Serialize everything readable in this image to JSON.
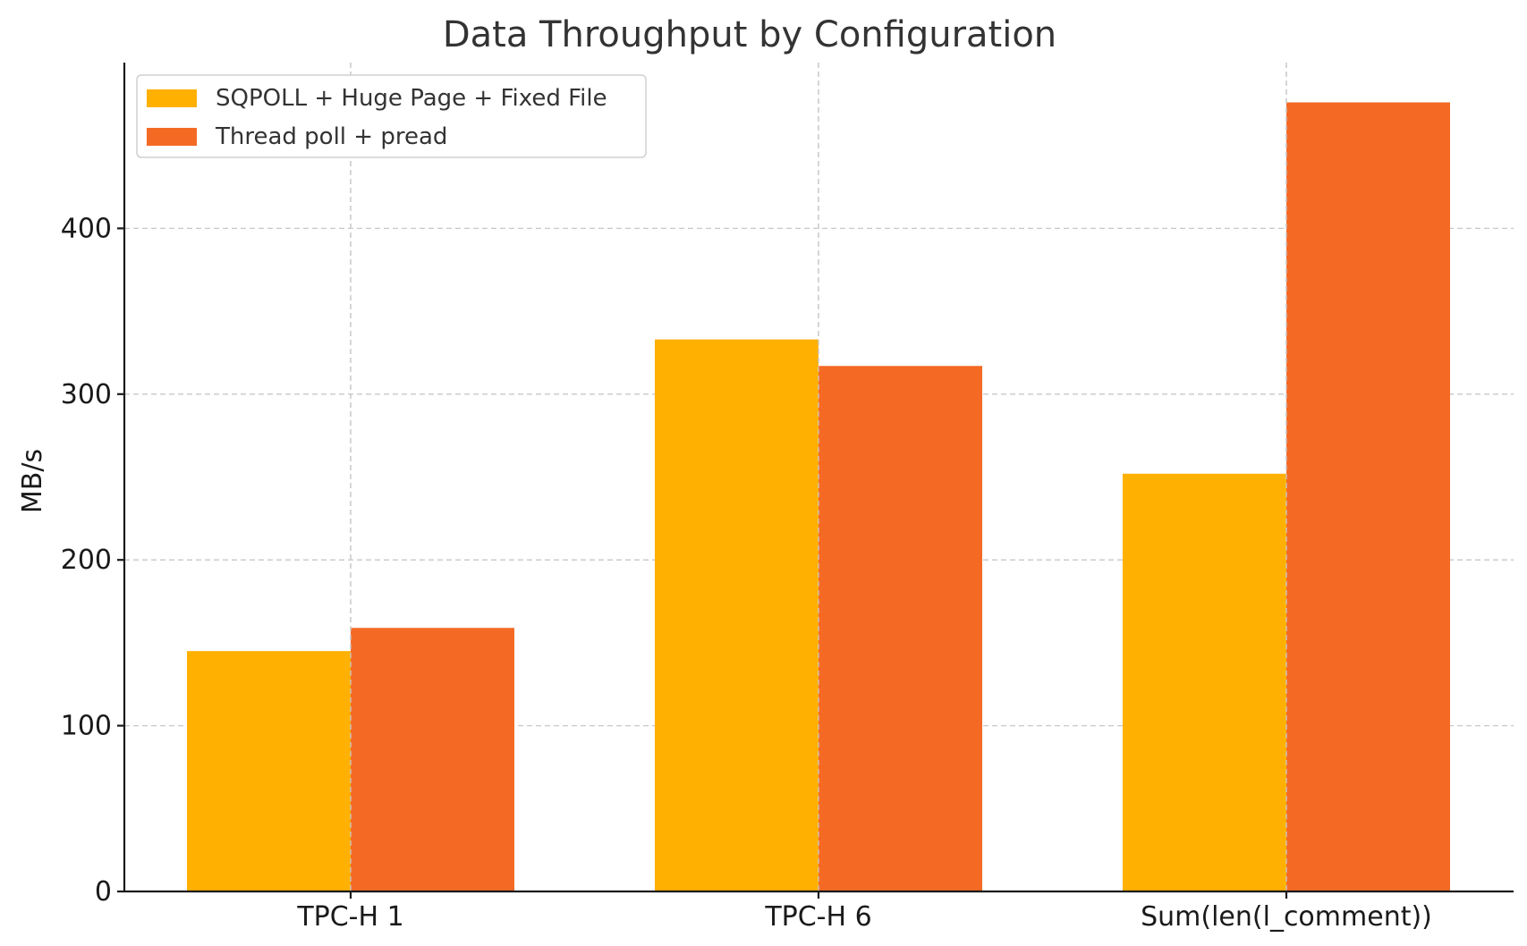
{
  "chart_data": {
    "type": "bar",
    "title": "Data Throughput by Configuration",
    "xlabel": "",
    "ylabel": "MB/s",
    "categories": [
      "TPC-H 1",
      "TPC-H 6",
      "Sum(len(l_comment))"
    ],
    "series": [
      {
        "name": "SQPOLL + Huge Page + Fixed File",
        "color": "#FFB000",
        "values": [
          145,
          333,
          252
        ]
      },
      {
        "name": "Thread poll + pread",
        "color": "#F46A25",
        "values": [
          159,
          317,
          476
        ]
      }
    ],
    "ylim": [
      0,
      500
    ],
    "yticks": [
      0,
      100,
      200,
      300,
      400
    ],
    "grid": true,
    "legend_position": "top-left"
  }
}
